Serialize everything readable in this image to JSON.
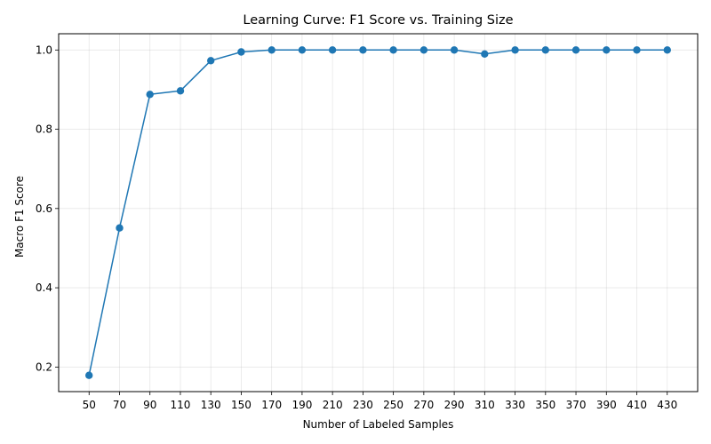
{
  "chart_data": {
    "type": "line",
    "title": "Learning Curve: F1 Score vs. Training Size",
    "xlabel": "Number of Labeled Samples",
    "ylabel": "Macro F1 Score",
    "x": [
      50,
      70,
      90,
      110,
      130,
      150,
      170,
      190,
      210,
      230,
      250,
      270,
      290,
      310,
      330,
      350,
      370,
      390,
      410,
      430
    ],
    "y": [
      0.179,
      0.551,
      0.888,
      0.897,
      0.973,
      0.995,
      1.0,
      1.0,
      1.0,
      1.0,
      1.0,
      1.0,
      1.0,
      0.99,
      1.0,
      1.0,
      1.0,
      1.0,
      1.0,
      1.0
    ],
    "xticks": [
      "50",
      "70",
      "90",
      "110",
      "130",
      "150",
      "170",
      "190",
      "210",
      "230",
      "250",
      "270",
      "290",
      "310",
      "330",
      "350",
      "370",
      "390",
      "410",
      "430"
    ],
    "yticks": [
      "0.2",
      "0.4",
      "0.6",
      "0.8",
      "1.0"
    ],
    "xlim": [
      30,
      450
    ],
    "ylim": [
      0.138,
      1.041
    ],
    "grid": true,
    "color": "#1f77b4",
    "marker": "circle"
  }
}
